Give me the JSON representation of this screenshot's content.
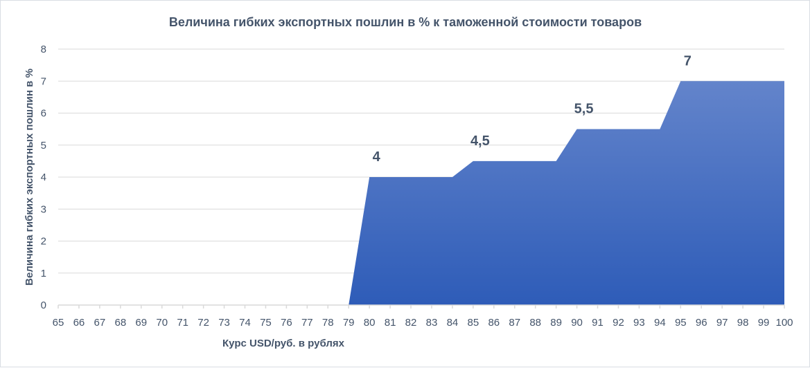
{
  "chart_data": {
    "type": "area",
    "title": "Величина гибких экспортных пошлин в % к таможенной стоимости товаров",
    "xlabel": "Курс USD/руб. в рублях",
    "ylabel": "Величина гибких экспортных пошлин в %",
    "x": [
      65,
      66,
      67,
      68,
      69,
      70,
      71,
      72,
      73,
      74,
      75,
      76,
      77,
      78,
      79,
      80,
      81,
      82,
      83,
      84,
      85,
      86,
      87,
      88,
      89,
      90,
      91,
      92,
      93,
      94,
      95,
      96,
      97,
      98,
      99,
      100
    ],
    "values": [
      0,
      0,
      0,
      0,
      0,
      0,
      0,
      0,
      0,
      0,
      0,
      0,
      0,
      0,
      0,
      4,
      4,
      4,
      4,
      4,
      4.5,
      4.5,
      4.5,
      4.5,
      4.5,
      5.5,
      5.5,
      5.5,
      5.5,
      5.5,
      7,
      7,
      7,
      7,
      7,
      7
    ],
    "data_labels": [
      {
        "x": 80,
        "text": "4"
      },
      {
        "x": 85,
        "text": "4,5"
      },
      {
        "x": 90,
        "text": "5,5"
      },
      {
        "x": 95,
        "text": "7"
      }
    ],
    "ylim": [
      0,
      8
    ],
    "yticks": [
      "0",
      "1",
      "2",
      "3",
      "4",
      "5",
      "6",
      "7",
      "8"
    ],
    "grid": true,
    "legend": "none",
    "colors": {
      "fill_top": "#6384cb",
      "fill_bottom": "#2e5cb8",
      "text": "#44546a",
      "grid": "#d9d9d9"
    }
  }
}
